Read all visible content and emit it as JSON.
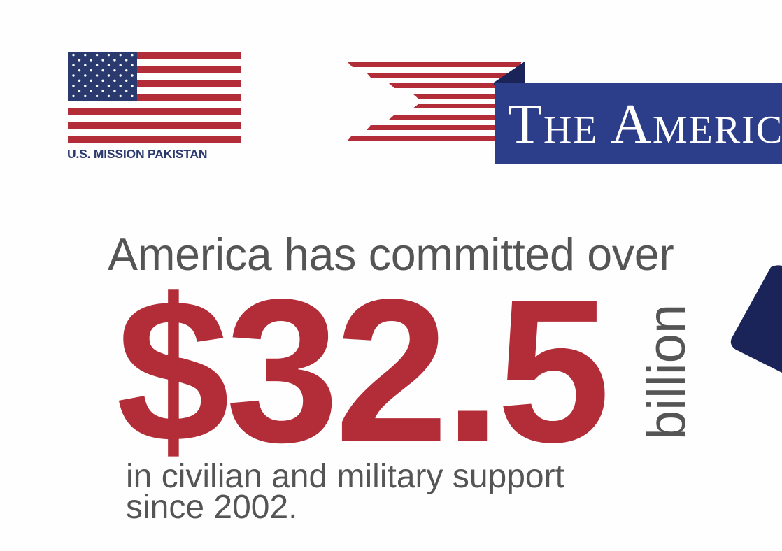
{
  "colors": {
    "red": "#b32d39",
    "navy": "#2c3d8a",
    "dark_navy": "#1b2458",
    "text_gray": "#555555",
    "white": "#ffffff",
    "flag_blue": "#2a3a6e"
  },
  "logo": {
    "icon": "us-flag-icon",
    "label": "U.S. MISSION PAKISTAN"
  },
  "banner": {
    "icon": "stripes-ribbon-icon",
    "title": "The Americ"
  },
  "headline": "America has committed over",
  "amount": "$32.5",
  "unit": "billion",
  "subtext_line1": "in civilian and military support",
  "subtext_line2": "since 2002."
}
